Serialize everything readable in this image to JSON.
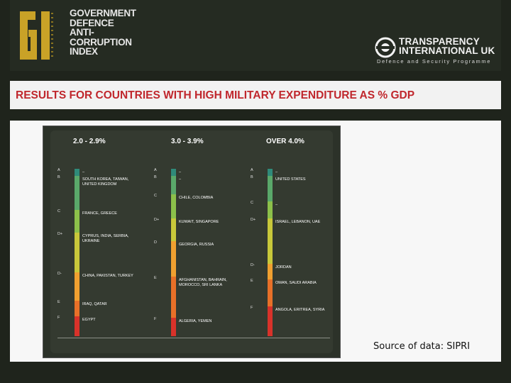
{
  "header": {
    "gi_mark": "GI",
    "gi_lines": [
      "GOVERNMENT",
      "DEFENCE",
      "ANTI-",
      "CORRUPTION",
      "INDEX"
    ],
    "ti_lines": [
      "TRANSPARENCY",
      "INTERNATIONAL UK"
    ],
    "ti_subtitle": "Defence and Security Programme"
  },
  "banner": {
    "title": "RESULTS FOR COUNTRIES WITH HIGH MILITARY EXPENDITURE AS % GDP"
  },
  "chart": {
    "columns": [
      {
        "heading": "2.0 - 2.9%",
        "grades": [
          "A",
          "B",
          "C",
          "D+",
          "D-",
          "E",
          "F"
        ],
        "countries": [
          "–",
          "SOUTH KOREA, TAIWAN, UNITED KINGDOM",
          "FRANCE, GREECE",
          "CYPRUS, INDIA, SERBIA, UKRAINE",
          "CHINA, PAKISTAN, TURKEY",
          "IRAQ, QATAR",
          "EGYPT"
        ]
      },
      {
        "heading": "3.0 - 3.9%",
        "grades": [
          "A",
          "B",
          "C",
          "D+",
          "D",
          "E",
          "F"
        ],
        "countries": [
          "–",
          "–",
          "CHILE, COLOMBIA",
          "KUWAIT, SINGAPORE",
          "GEORGIA, RUSSIA",
          "AFGHANISTAN, BAHRAIN, MOROCCO, SRI LANKA",
          "ALGERIA, YEMEN"
        ]
      },
      {
        "heading": "OVER 4.0%",
        "grades": [
          "A",
          "B",
          "C",
          "D+",
          "D-",
          "E",
          "F"
        ],
        "countries": [
          "–",
          "UNITED STATES",
          "–",
          "ISRAEL, LEBANON, UAE",
          "JORDAN",
          "OMAN, SAUDI ARABIA",
          "ANGOLA, ERITREA, SYRIA"
        ]
      }
    ],
    "band_colors": [
      "#2f8a7a",
      "#5aa86a",
      "#8cc04a",
      "#c8c83a",
      "#f0a030",
      "#e87028",
      "#d8322a"
    ]
  },
  "source_note": "Source of data: SIPRI"
}
